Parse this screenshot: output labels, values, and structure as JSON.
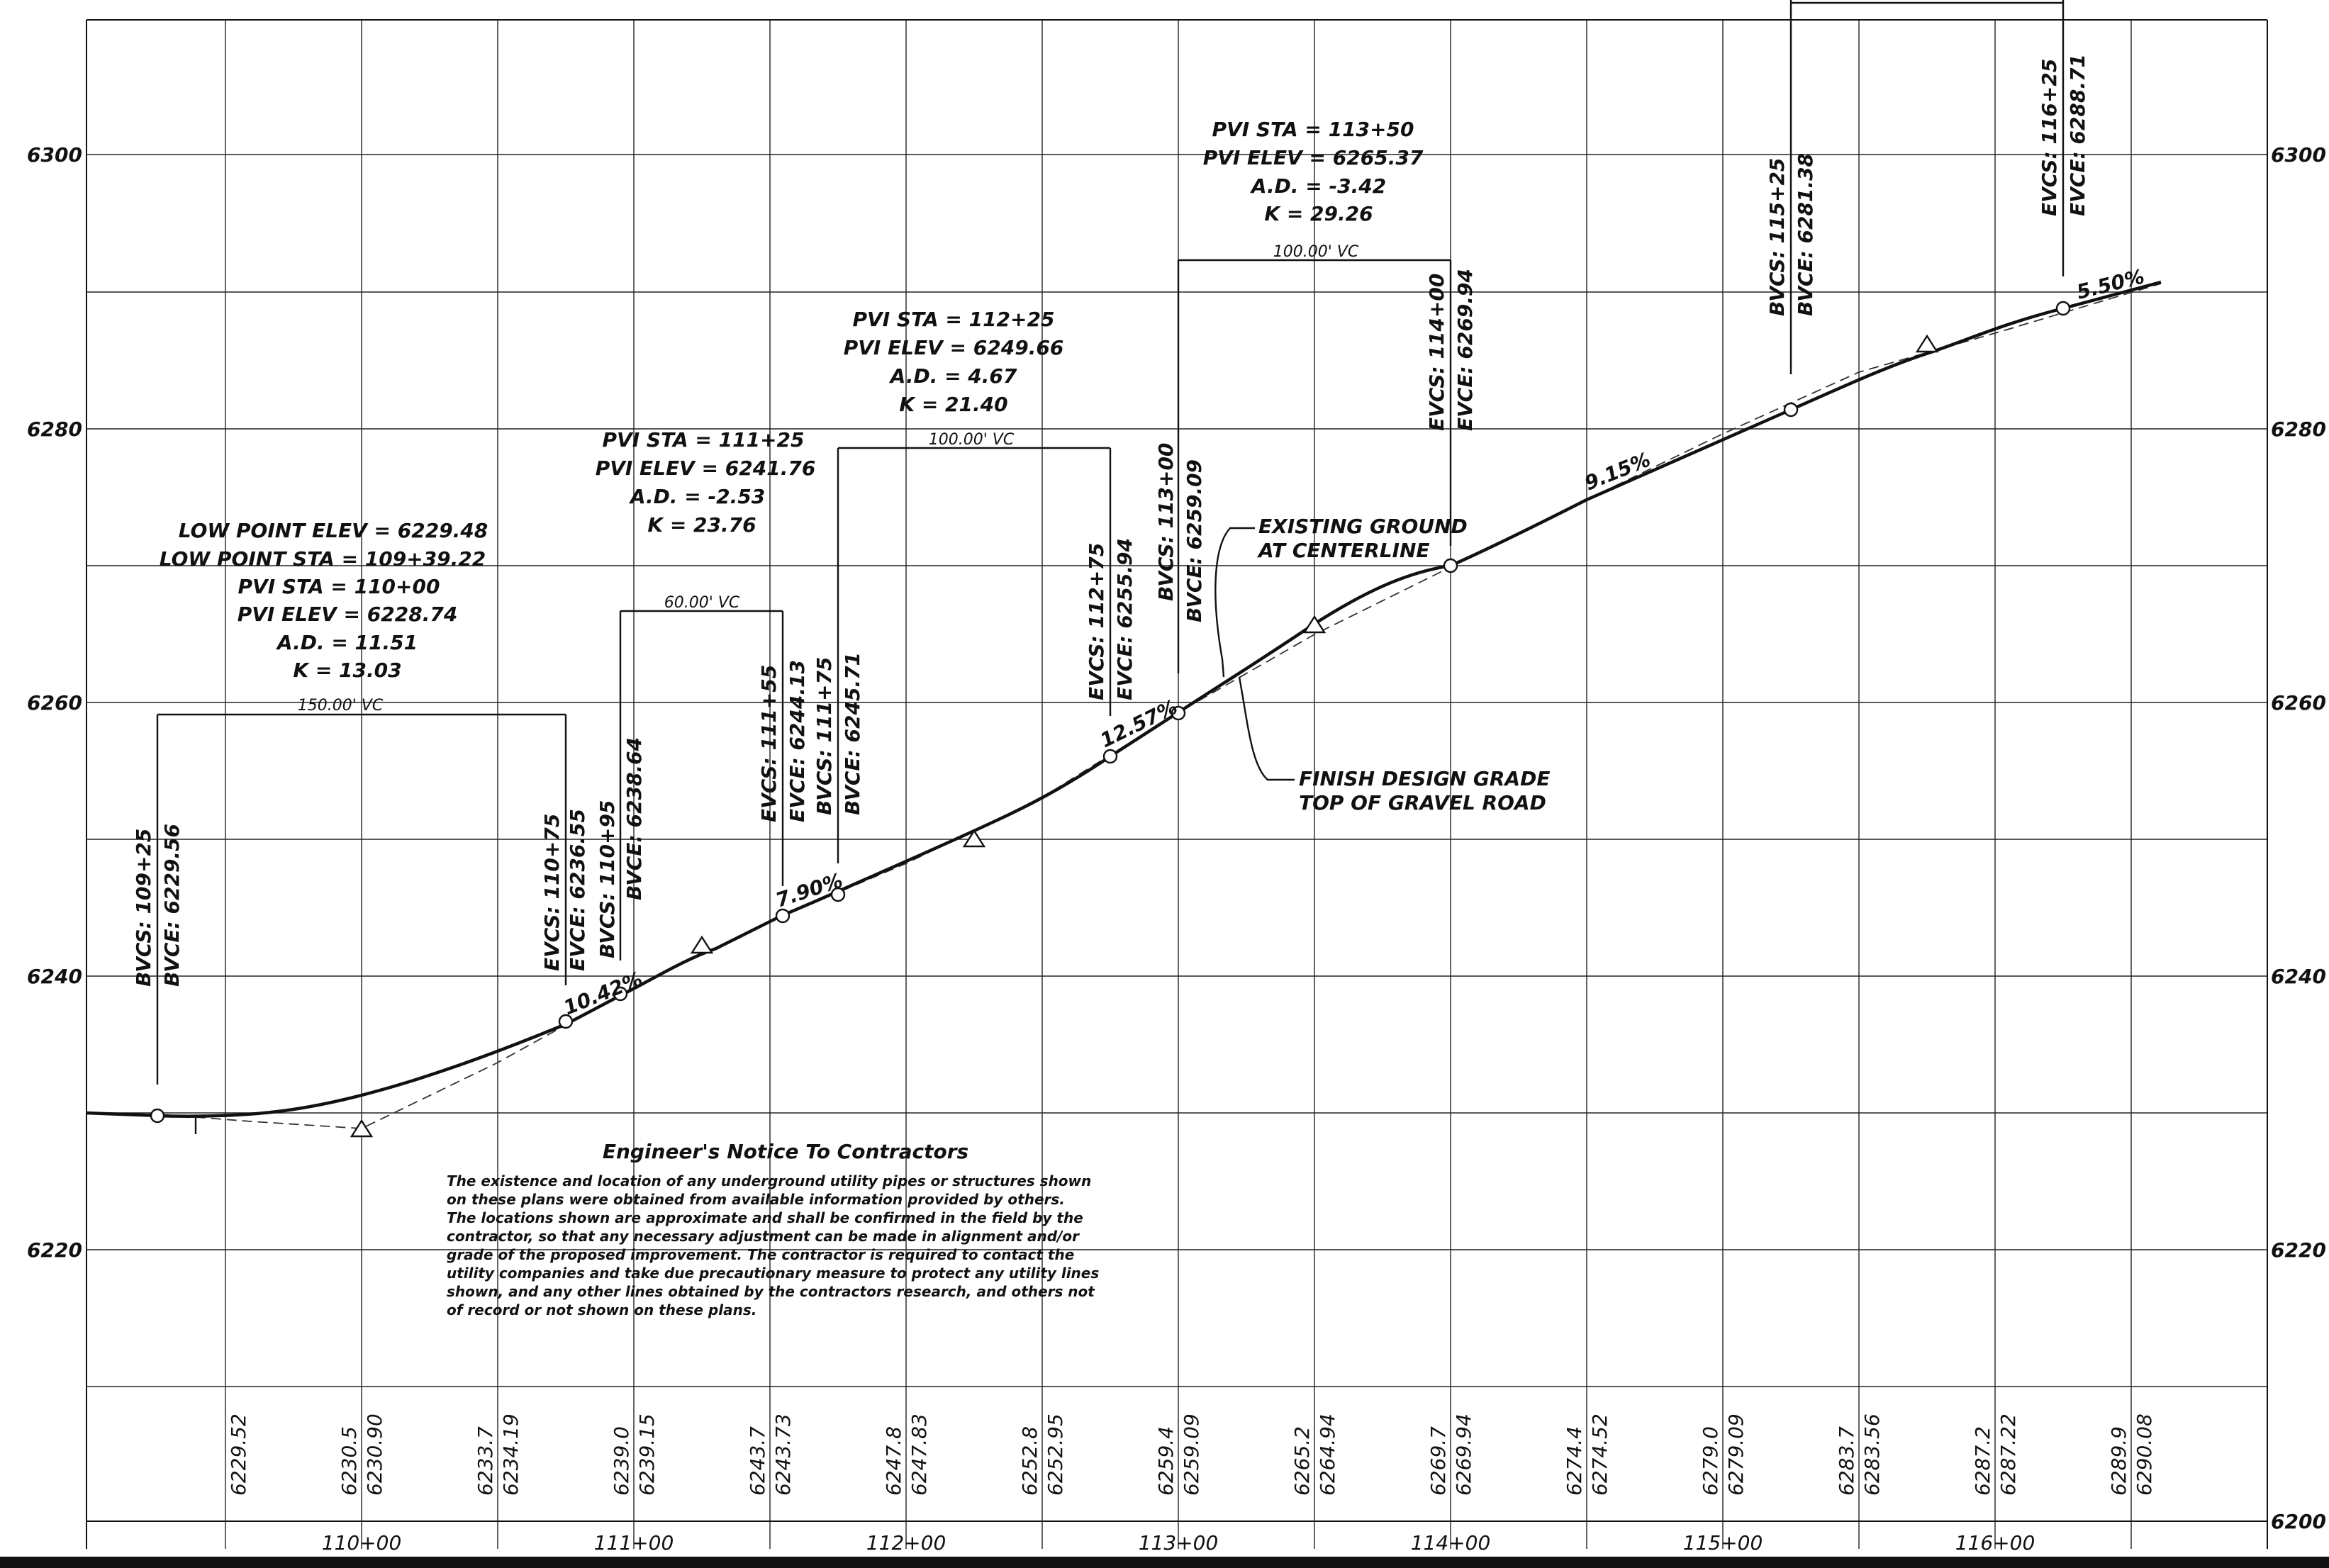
{
  "elevation_axis": {
    "left_labels": [
      "6300",
      "6280",
      "6260",
      "6240",
      "6220"
    ],
    "right_labels": [
      "6300",
      "6280",
      "6260",
      "6240",
      "6220",
      "6200"
    ]
  },
  "station_axis": [
    "110+00",
    "111+00",
    "112+00",
    "113+00",
    "114+00",
    "115+00",
    "116+00"
  ],
  "elevation_table": [
    {
      "existing": "",
      "design": "6229.52"
    },
    {
      "existing": "6230.5",
      "design": "6230.90"
    },
    {
      "existing": "6233.7",
      "design": "6234.19"
    },
    {
      "existing": "6239.0",
      "design": "6239.15"
    },
    {
      "existing": "6243.7",
      "design": "6243.73"
    },
    {
      "existing": "6247.8",
      "design": "6247.83"
    },
    {
      "existing": "6252.8",
      "design": "6252.95"
    },
    {
      "existing": "6259.4",
      "design": "6259.09"
    },
    {
      "existing": "6265.2",
      "design": "6264.94"
    },
    {
      "existing": "6269.7",
      "design": "6269.94"
    },
    {
      "existing": "6274.4",
      "design": "6274.52"
    },
    {
      "existing": "6279.0",
      "design": "6279.09"
    },
    {
      "existing": "6283.7",
      "design": "6283.56"
    },
    {
      "existing": "6287.2",
      "design": "6287.22"
    },
    {
      "existing": "6289.9",
      "design": "6290.08"
    }
  ],
  "curves": [
    {
      "info": [
        "LOW POINT ELEV = 6229.48",
        "LOW POINT STA = 109+39.22",
        "PVI STA = 110+00",
        "PVI ELEV = 6228.74",
        "A.D. = 11.51",
        "K = 13.03"
      ],
      "length": "150.00' VC",
      "bvc": [
        "BVCS: 109+25",
        "BVCE: 6229.56"
      ],
      "evc": [
        "EVCS: 110+75",
        "EVCE: 6236.55"
      ]
    },
    {
      "info": [
        "PVI STA = 111+25",
        "PVI ELEV = 6241.76",
        "A.D. = -2.53",
        "K = 23.76"
      ],
      "length": "60.00' VC",
      "bvc": [
        "BVCS: 110+95",
        "BVCE: 6238.64"
      ],
      "evc": [
        "EVCS: 111+55",
        "EVCE: 6244.13"
      ]
    },
    {
      "info": [
        "PVI STA = 112+25",
        "PVI ELEV = 6249.66",
        "A.D. = 4.67",
        "K = 21.40"
      ],
      "length": "100.00' VC",
      "bvc": [
        "BVCS: 111+75",
        "BVCE: 6245.71"
      ],
      "evc": [
        "EVCS: 112+75",
        "EVCE: 6255.94"
      ]
    },
    {
      "info": [
        "PVI STA = 113+50",
        "PVI ELEV = 6265.37",
        "A.D. = -3.42",
        "K = 29.26"
      ],
      "length": "100.00' VC",
      "bvc": [
        "BVCS: 113+00",
        "BVCE: 6259.09"
      ],
      "evc": [
        "EVCS: 114+00",
        "EVCE: 6269.94"
      ]
    },
    {
      "info": [],
      "length": "",
      "bvc": [
        "BVCS: 115+25",
        "BVCE: 6281.38"
      ],
      "evc": [
        "EVCS: 116+25",
        "EVCE: 6288.71"
      ]
    }
  ],
  "grades": [
    "10.42%",
    "7.90%",
    "12.57%",
    "9.15%",
    "5.50%"
  ],
  "callouts": {
    "existing": [
      "EXISTING GROUND",
      "AT CENTERLINE"
    ],
    "finish": [
      "FINISH DESIGN GRADE",
      "TOP OF GRAVEL ROAD"
    ]
  },
  "notice": {
    "title": "Engineer's Notice To Contractors",
    "lines": [
      "The existence and location of any underground utility pipes or structures shown",
      "on these plans were obtained from available information provided by others.",
      "The locations shown are approximate and shall be confirmed in the field by the",
      "contractor, so that any necessary adjustment can be made in alignment and/or",
      "grade of the proposed improvement.  The contractor is required to contact the",
      "utility companies and take due precautionary measure to protect any utility lines",
      "shown, and any other lines obtained by the contractors research, and others not",
      "of record or not shown on these plans."
    ]
  },
  "colors": {
    "ink": "#111111",
    "background": "#ffffff"
  }
}
